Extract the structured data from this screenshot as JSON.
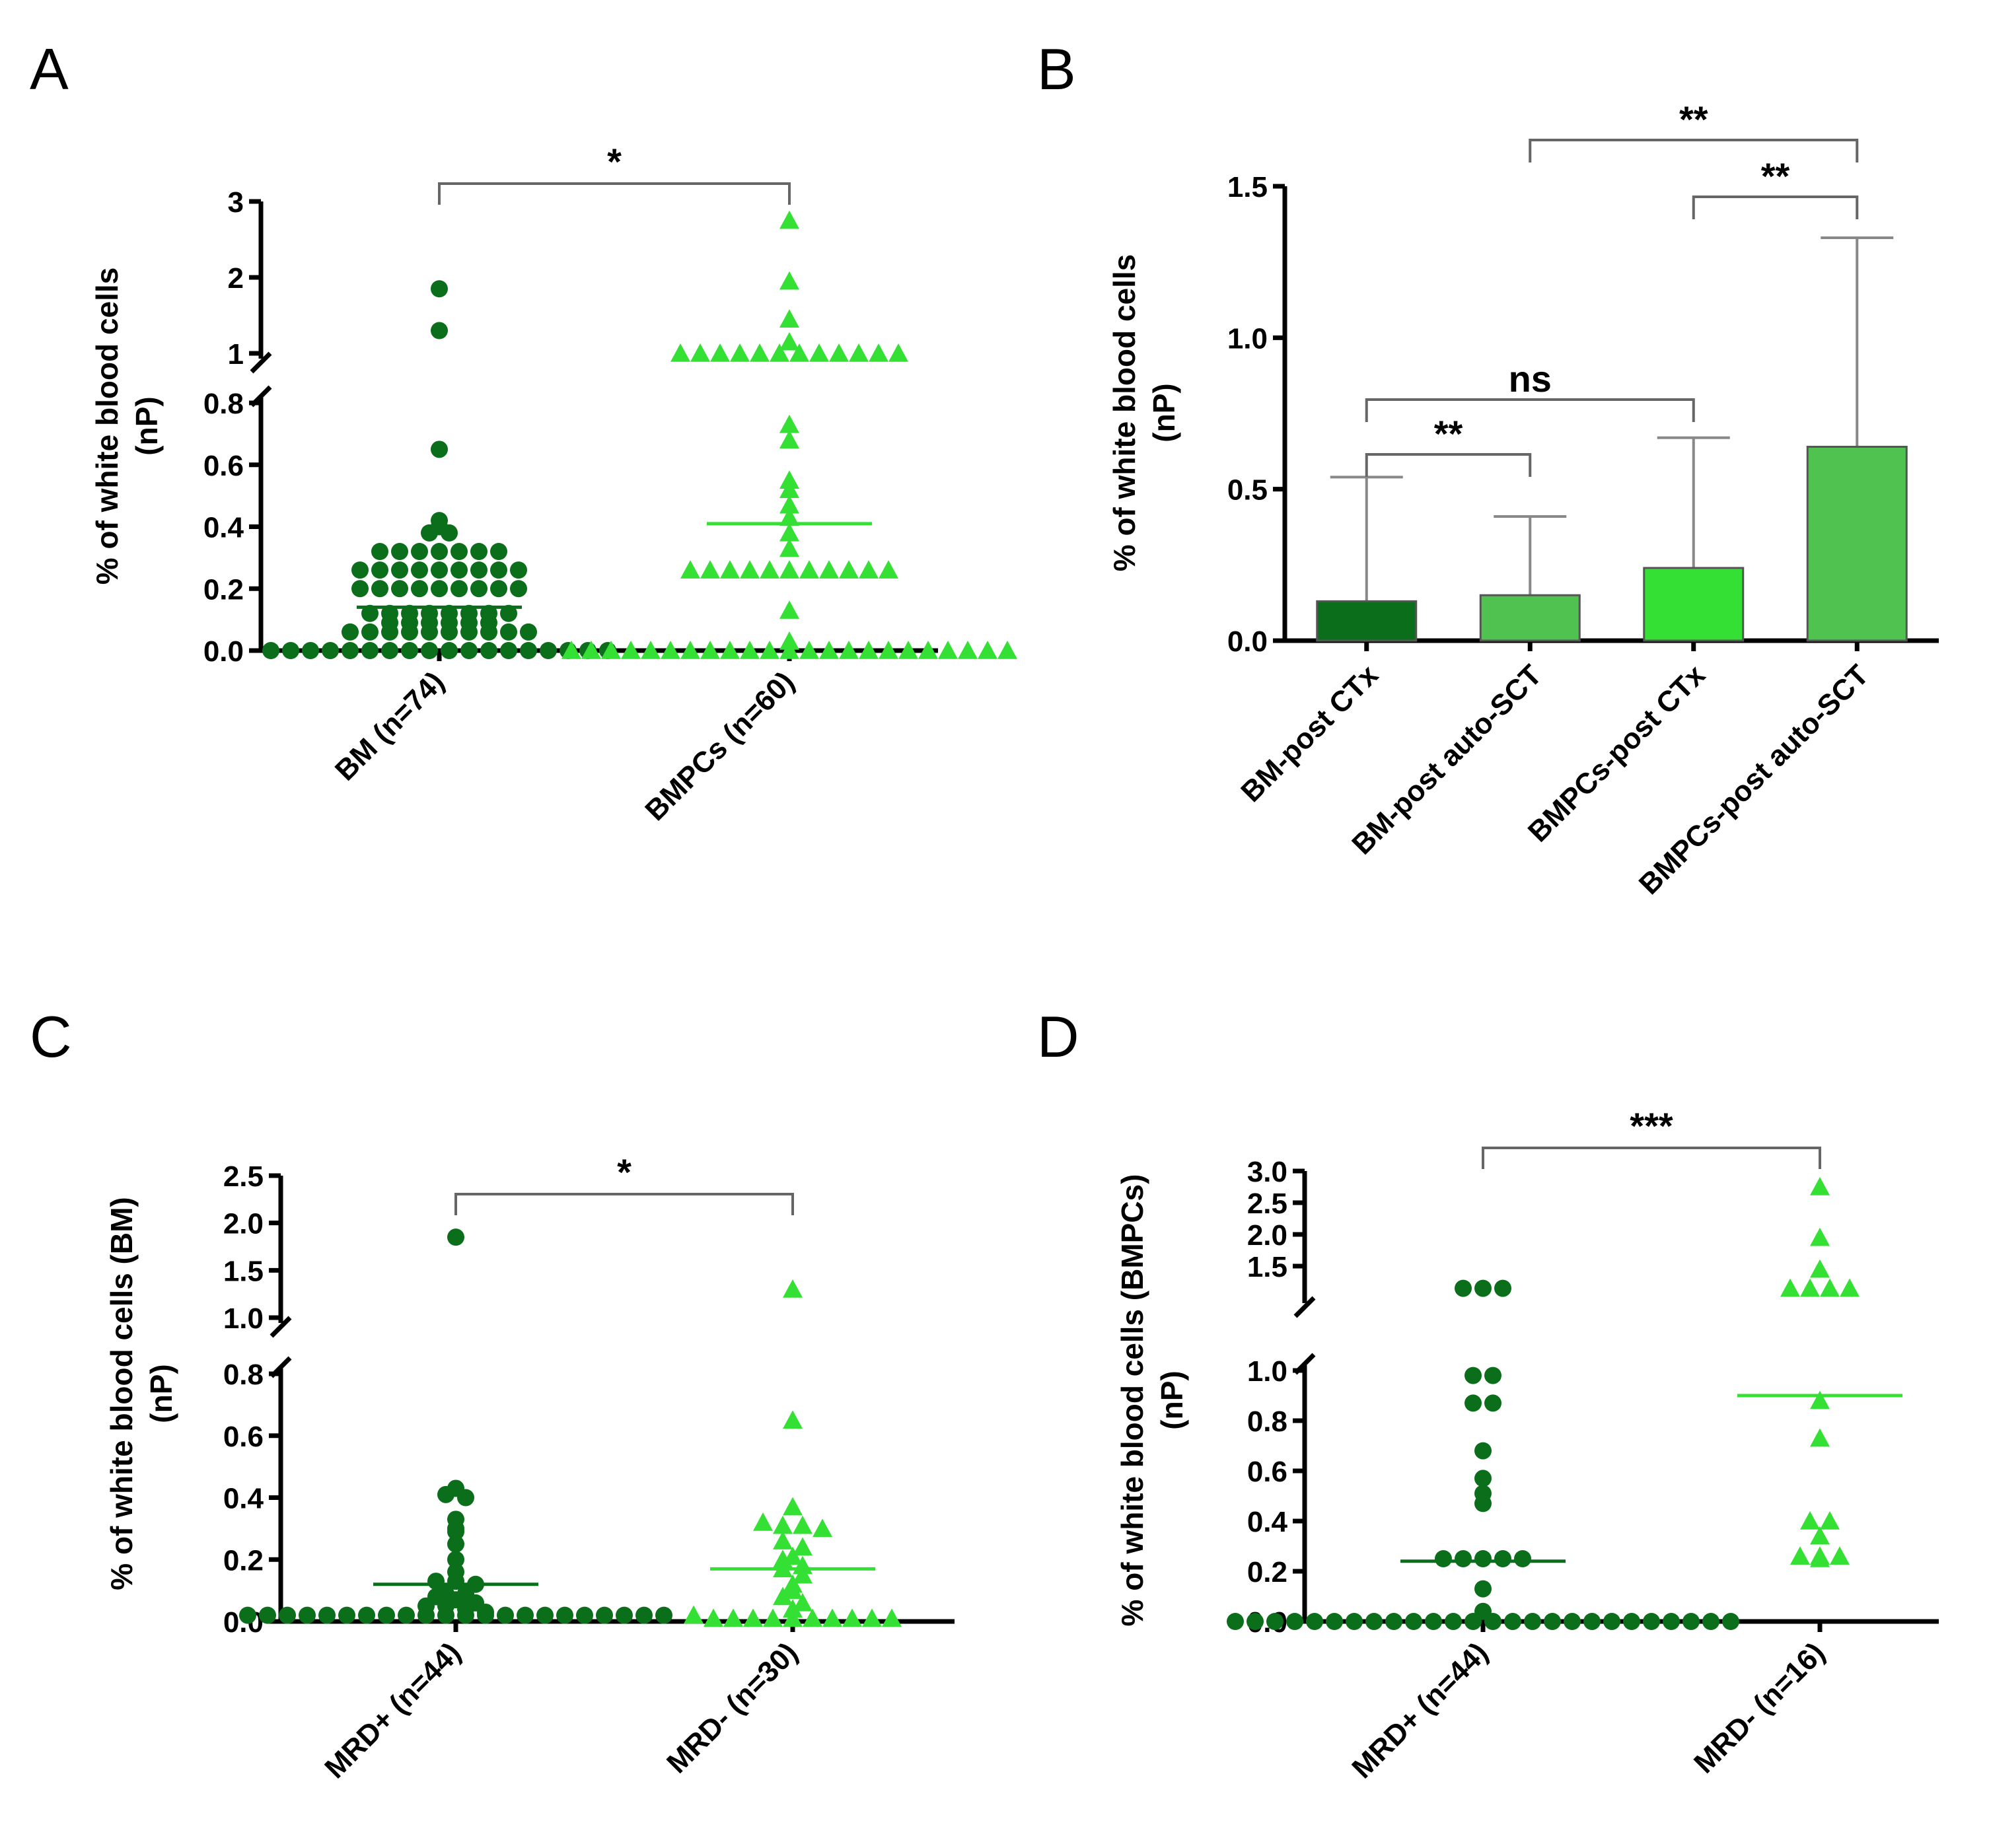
{
  "colors": {
    "dark": "#0b6e1b",
    "bright": "#33e033",
    "medium": "#4fc24f",
    "axis": "#000000",
    "bracket": "#666666"
  },
  "chart_data": [
    {
      "panel": "A",
      "type": "scatter",
      "ylabel": [
        "% of white blood cells",
        "(nP)"
      ],
      "y_lower_ticks": [
        "0.0",
        "0.2",
        "0.4",
        "0.6",
        "0.8"
      ],
      "y_upper_ticks": [
        "1",
        "2",
        "3"
      ],
      "ylim_lower": [
        0,
        0.8
      ],
      "ylim_upper": [
        1,
        3
      ],
      "categories": [
        "BM (n=74)",
        "BMPCs (n=60)"
      ],
      "series": [
        {
          "name": "BM (n=74)",
          "marker": "circle",
          "color": "dark",
          "median": 0.14,
          "values": [
            1.85,
            1.3,
            0.65,
            0.42,
            0.4,
            0.38,
            0.38,
            0.32,
            0.32,
            0.32,
            0.32,
            0.32,
            0.32,
            0.32,
            0.26,
            0.26,
            0.26,
            0.26,
            0.26,
            0.26,
            0.26,
            0.26,
            0.26,
            0.2,
            0.2,
            0.2,
            0.2,
            0.2,
            0.2,
            0.2,
            0.2,
            0.2,
            0.12,
            0.12,
            0.12,
            0.12,
            0.12,
            0.12,
            0.12,
            0.12,
            0.09,
            0.09,
            0.09,
            0.09,
            0.09,
            0.09,
            0.06,
            0.06,
            0.06,
            0.06,
            0.06,
            0.06,
            0.06,
            0.06,
            0.06,
            0.06,
            0,
            0,
            0,
            0,
            0,
            0,
            0,
            0,
            0,
            0,
            0,
            0,
            0,
            0,
            0,
            0,
            0,
            0
          ]
        },
        {
          "name": "BMPCs (n=60)",
          "marker": "triangle",
          "color": "bright",
          "median": 0.41,
          "values": [
            2.75,
            1.95,
            1.45,
            1.15,
            1.0,
            1.0,
            1.0,
            1.0,
            1.0,
            1.0,
            1.0,
            1.0,
            1.0,
            0.97,
            0.97,
            0.97,
            0.73,
            0.68,
            0.55,
            0.52,
            0.47,
            0.43,
            0.38,
            0.33,
            0.26,
            0.26,
            0.26,
            0.26,
            0.26,
            0.26,
            0.26,
            0.26,
            0.26,
            0.26,
            0.26,
            0.13,
            0.03,
            0,
            0,
            0,
            0,
            0,
            0,
            0,
            0,
            0,
            0,
            0,
            0,
            0,
            0,
            0,
            0,
            0,
            0,
            0,
            0,
            0,
            0,
            0
          ]
        }
      ],
      "significance": [
        {
          "from": 0,
          "to": 1,
          "label": "*"
        }
      ]
    },
    {
      "panel": "B",
      "type": "bar",
      "ylabel": [
        "% of white blood cells",
        "(nP)"
      ],
      "y_ticks": [
        "0.0",
        "0.5",
        "1.0",
        "1.5"
      ],
      "ylim": [
        0,
        1.5
      ],
      "categories": [
        "BM-post CTx",
        "BM-post auto-SCT",
        "BMPCs-post CTx",
        "BMPCs-post auto-SCT"
      ],
      "values": [
        0.13,
        0.15,
        0.24,
        0.64
      ],
      "error_upper": [
        0.54,
        0.41,
        0.67,
        1.33
      ],
      "bar_colors": [
        "dark",
        "medium",
        "bright",
        "medium"
      ],
      "significance": [
        {
          "from": 0,
          "to": 1,
          "label": "**"
        },
        {
          "from": 0,
          "to": 2,
          "label": "ns"
        },
        {
          "from": 2,
          "to": 3,
          "label": "**"
        },
        {
          "from": 1,
          "to": 3,
          "label": "**"
        }
      ]
    },
    {
      "panel": "C",
      "type": "scatter",
      "ylabel": [
        "% of white blood cells (BM)",
        "(nP)"
      ],
      "y_lower_ticks": [
        "0.0",
        "0.2",
        "0.4",
        "0.6",
        "0.8"
      ],
      "y_upper_ticks": [
        "1.0",
        "1.5",
        "2.0",
        "2.5"
      ],
      "ylim_lower": [
        0,
        0.8
      ],
      "ylim_upper": [
        1,
        2.5
      ],
      "categories": [
        "MRD+ (n=44)",
        "MRD- (n=30)"
      ],
      "series": [
        {
          "name": "MRD+ (n=44)",
          "marker": "circle",
          "color": "dark",
          "median": 0.12,
          "values": [
            1.85,
            0.43,
            0.41,
            0.4,
            0.33,
            0.3,
            0.29,
            0.25,
            0.2,
            0.16,
            0.13,
            0.13,
            0.12,
            0.09,
            0.09,
            0.08,
            0.07,
            0.06,
            0.05,
            0.05,
            0.04,
            0.03,
            0.02,
            0.02,
            0.02,
            0.02,
            0.02,
            0.02,
            0.02,
            0.02,
            0.02,
            0.02,
            0.02,
            0.02,
            0.02,
            0.02,
            0.02,
            0.02,
            0.02,
            0.02,
            0.02,
            0.02,
            0.02,
            0.02
          ]
        },
        {
          "name": "MRD- (n=30)",
          "marker": "triangle",
          "color": "bright",
          "median": 0.17,
          "values": [
            1.3,
            0.65,
            0.37,
            0.32,
            0.31,
            0.31,
            0.3,
            0.26,
            0.24,
            0.21,
            0.2,
            0.18,
            0.17,
            0.15,
            0.12,
            0.1,
            0.08,
            0.06,
            0.04,
            0.02,
            0.01,
            0.01,
            0.01,
            0.01,
            0.01,
            0.01,
            0.01,
            0.01,
            0.01,
            0.01
          ]
        }
      ],
      "significance": [
        {
          "from": 0,
          "to": 1,
          "label": "*"
        }
      ]
    },
    {
      "panel": "D",
      "type": "scatter",
      "ylabel": [
        "% of white blood cells (BMPCs)",
        "(nP)"
      ],
      "y_lower_ticks": [
        "0.0",
        "0.2",
        "0.4",
        "0.6",
        "0.8",
        "1.0"
      ],
      "y_upper_ticks": [
        "1.5",
        "2.0",
        "2.5",
        "3.0"
      ],
      "ylim_lower": [
        0,
        1.0
      ],
      "ylim_upper": [
        1,
        3.0
      ],
      "categories": [
        "MRD+ (n=44)",
        "MRD- (n=16)"
      ],
      "series": [
        {
          "name": "MRD+ (n=44)",
          "marker": "circle",
          "color": "dark",
          "median": 0.24,
          "values": [
            1.15,
            1.15,
            1.15,
            0.98,
            0.98,
            0.87,
            0.87,
            0.68,
            0.57,
            0.51,
            0.47,
            0.25,
            0.25,
            0.25,
            0.25,
            0.25,
            0.13,
            0.04,
            0,
            0,
            0,
            0,
            0,
            0,
            0,
            0,
            0,
            0,
            0,
            0,
            0,
            0,
            0,
            0,
            0,
            0,
            0,
            0,
            0,
            0,
            0,
            0,
            0,
            0
          ]
        },
        {
          "name": "MRD- (n=16)",
          "marker": "triangle",
          "color": "bright",
          "median": 0.9,
          "values": [
            2.75,
            1.95,
            1.45,
            1.15,
            1.15,
            1.15,
            1.15,
            0.88,
            0.73,
            0.4,
            0.4,
            0.34,
            0.26,
            0.26,
            0.26,
            0.25
          ]
        }
      ],
      "significance": [
        {
          "from": 0,
          "to": 1,
          "label": "***"
        }
      ]
    }
  ]
}
